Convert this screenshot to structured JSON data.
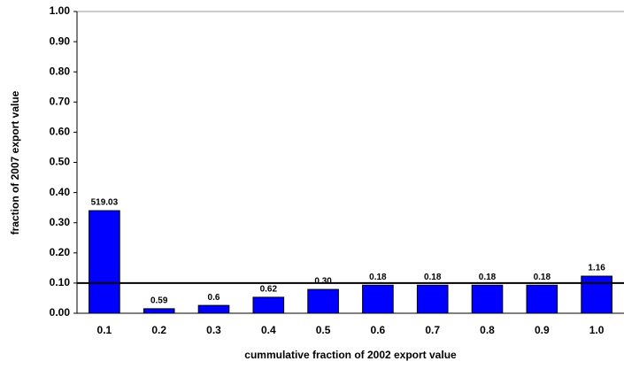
{
  "chart_data": {
    "type": "bar",
    "x_label": "cummulative fraction of 2002 export value",
    "y_label": "fraction of 2007 export value",
    "categories": [
      "0.1",
      "0.2",
      "0.3",
      "0.4",
      "0.5",
      "0.6",
      "0.7",
      "0.8",
      "0.9",
      "1.0"
    ],
    "values": [
      0.34,
      0.015,
      0.026,
      0.053,
      0.079,
      0.093,
      0.093,
      0.093,
      0.093,
      0.123
    ],
    "annotations": [
      "519.03",
      "0.59",
      "0.6",
      "0.62",
      "0.30",
      "0.18",
      "0.18",
      "0.18",
      "0.18",
      "1.16"
    ],
    "color": "#0000ff",
    "reference_line": 0.1,
    "ylim": [
      0,
      1
    ],
    "yticks": [
      {
        "value": 0,
        "label": "0.00"
      },
      {
        "value": 0.1,
        "label": "0.10"
      },
      {
        "value": 0.2,
        "label": "0.20"
      },
      {
        "value": 0.3,
        "label": "0.30"
      },
      {
        "value": 0.4,
        "label": "0.40"
      },
      {
        "value": 0.5,
        "label": "0.50"
      },
      {
        "value": 0.6,
        "label": "0.60"
      },
      {
        "value": 0.7,
        "label": "0.70"
      },
      {
        "value": 0.8,
        "label": "0.80"
      },
      {
        "value": 0.9,
        "label": "0.90"
      },
      {
        "value": 1,
        "label": "1.00"
      }
    ],
    "grid": false
  }
}
